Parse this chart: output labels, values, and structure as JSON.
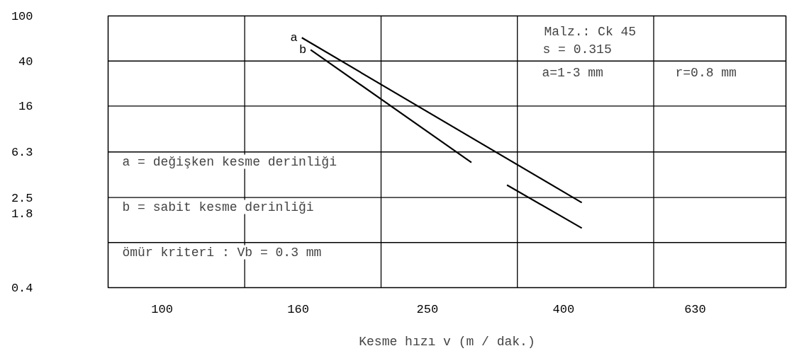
{
  "chart_data": {
    "type": "line",
    "xlabel": "Kesme hızı v (m / dak.)",
    "log": "xy",
    "xlim": [
      83,
      862
    ],
    "ylim": [
      0.4,
      100
    ],
    "xticks": [
      100,
      160,
      250,
      400,
      630
    ],
    "yticks": [
      100,
      40,
      16,
      6.3,
      2.5,
      1.8,
      0.4
    ],
    "marker": "none",
    "line_style": "solid",
    "ref_lines": [
      {
        "axis": "x",
        "value": 133,
        "color": "#000000"
      },
      {
        "axis": "x",
        "value": 213,
        "color": "#000000"
      },
      {
        "axis": "x",
        "value": 341,
        "color": "#000000"
      },
      {
        "axis": "x",
        "value": 546,
        "color": "#000000"
      },
      {
        "axis": "y",
        "value": 40,
        "color": "#000000"
      },
      {
        "axis": "y",
        "value": 16,
        "color": "#000000"
      },
      {
        "axis": "y",
        "value": 6.3,
        "color": "#000000"
      },
      {
        "axis": "y",
        "value": 2.5,
        "color": "#000000"
      },
      {
        "axis": "y",
        "value": 1,
        "color": "#000000"
      }
    ],
    "series": [
      {
        "name": "a",
        "color": "#000000",
        "x": [
          162,
          426
        ],
        "values": [
          64.2,
          2.25
        ]
      },
      {
        "name": "b",
        "color": "#000000",
        "x": [
          167,
          291,
          310,
          329,
          426
        ],
        "values": [
          50.3,
          5.09,
          null,
          3.22,
          1.34
        ]
      }
    ],
    "annotations": [
      "Malz.: Ck 45",
      "s = 0.315",
      "a=1-3 mm",
      "r=0.8 mm",
      "a = değişken kesme derinliği",
      "b = sabit kesme derinliği",
      "ömür kriteri : Vb = 0.3 mm"
    ]
  }
}
